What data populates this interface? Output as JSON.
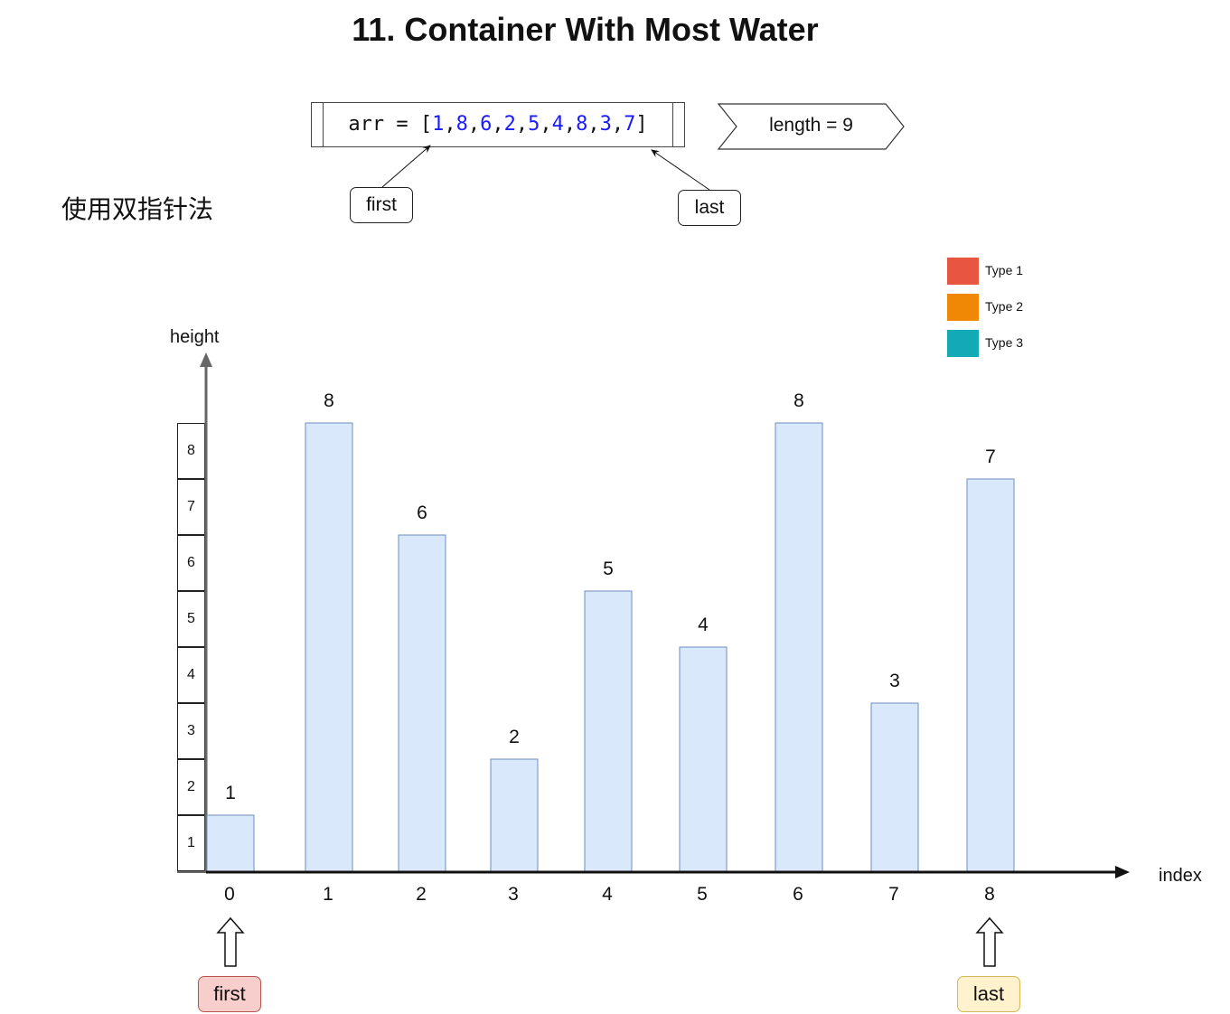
{
  "title": "11. Container With Most Water",
  "array": {
    "prefix": "arr = [",
    "values": [
      "1",
      "8",
      "6",
      "2",
      "5",
      "4",
      "8",
      "3",
      "7"
    ],
    "suffix": "]"
  },
  "length_label": "length = 9",
  "method_label": "使用双指针法",
  "pointers": {
    "first": "first",
    "last": "last"
  },
  "legend": [
    {
      "label": "Type 1",
      "color": "#e85642"
    },
    {
      "label": "Type 2",
      "color": "#f08705"
    },
    {
      "label": "Type 3",
      "color": "#12aab5"
    }
  ],
  "axes": {
    "y_label": "height",
    "x_label": "index"
  },
  "y_scale_cells": [
    "8",
    "7",
    "6",
    "5",
    "4",
    "3",
    "2",
    "1"
  ],
  "chart_data": {
    "type": "bar",
    "categories": [
      "0",
      "1",
      "2",
      "3",
      "4",
      "5",
      "6",
      "7",
      "8"
    ],
    "values": [
      1,
      8,
      6,
      2,
      5,
      4,
      8,
      3,
      7
    ],
    "xlabel": "index",
    "ylabel": "height",
    "ylim": [
      0,
      8
    ],
    "bar_color": "#dae8fc",
    "bar_border": "#6c8ebf"
  },
  "bottom_pointers": {
    "first": {
      "label": "first",
      "index": 0,
      "fill": "#f8cecc",
      "stroke": "#b85450"
    },
    "last": {
      "label": "last",
      "index": 8,
      "fill": "#fff2cc",
      "stroke": "#d6b656"
    }
  }
}
